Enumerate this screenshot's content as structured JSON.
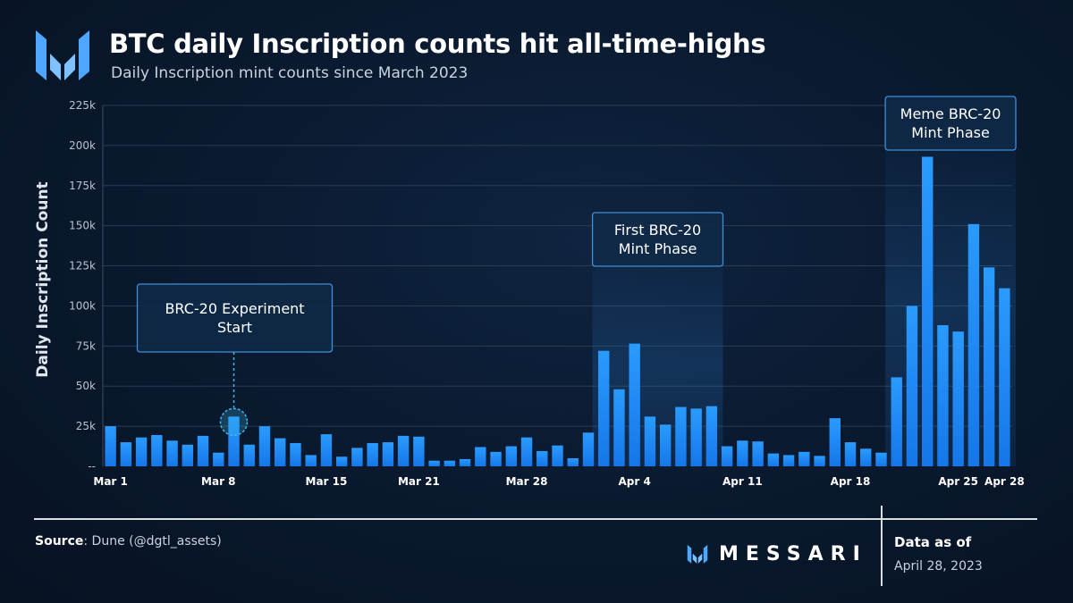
{
  "header": {
    "title": "BTC daily Inscription counts hit all-time-highs",
    "subtitle": "Daily Inscription mint counts since March 2023"
  },
  "footer": {
    "source_label": "Source",
    "source_text": ": Dune (@dgtl_assets)",
    "brand_name": "MESSARI",
    "as_of_label": "Data as of",
    "as_of_date": "April 28, 2023"
  },
  "colors": {
    "bar": "#1f8fff",
    "highlight_band": "#2a7fd6",
    "grid": "#2a3b52",
    "annotation_border": "#3f8fd8",
    "logo": "#4ea6ff"
  },
  "chart_data": {
    "type": "bar",
    "ylabel": "Daily Inscription Count",
    "ylim": [
      0,
      225000
    ],
    "y_ticks": [
      0,
      25000,
      50000,
      75000,
      100000,
      125000,
      150000,
      175000,
      200000,
      225000
    ],
    "y_tick_labels": [
      "--",
      "25k",
      "50k",
      "75k",
      "100k",
      "125k",
      "150k",
      "175k",
      "200k",
      "225k"
    ],
    "x_ticks": [
      {
        "label": "Mar 1",
        "date": "2023-03-01"
      },
      {
        "label": "Mar 8",
        "date": "2023-03-08"
      },
      {
        "label": "Mar 15",
        "date": "2023-03-15"
      },
      {
        "label": "Mar 21",
        "date": "2023-03-21"
      },
      {
        "label": "Mar 28",
        "date": "2023-03-28"
      },
      {
        "label": "Apr 4",
        "date": "2023-04-04"
      },
      {
        "label": "Apr 11",
        "date": "2023-04-11"
      },
      {
        "label": "Apr 18",
        "date": "2023-04-18"
      },
      {
        "label": "Apr 25",
        "date": "2023-04-25"
      },
      {
        "label": "Apr 28",
        "date": "2023-04-28"
      }
    ],
    "grid": true,
    "legend": "none",
    "series": [
      {
        "points": [
          [
            "2023-03-01",
            25000
          ],
          [
            "2023-03-02",
            15000
          ],
          [
            "2023-03-03",
            18000
          ],
          [
            "2023-03-04",
            19500
          ],
          [
            "2023-03-05",
            16000
          ],
          [
            "2023-03-06",
            13500
          ],
          [
            "2023-03-07",
            19000
          ],
          [
            "2023-03-08",
            8500
          ],
          [
            "2023-03-09",
            31000
          ],
          [
            "2023-03-10",
            13500
          ],
          [
            "2023-03-11",
            25000
          ],
          [
            "2023-03-12",
            17500
          ],
          [
            "2023-03-13",
            14500
          ],
          [
            "2023-03-14",
            7000
          ],
          [
            "2023-03-15",
            20000
          ],
          [
            "2023-03-16",
            6000
          ],
          [
            "2023-03-17",
            11500
          ],
          [
            "2023-03-18",
            14500
          ],
          [
            "2023-03-19",
            15000
          ],
          [
            "2023-03-20",
            19000
          ],
          [
            "2023-03-21",
            18500
          ],
          [
            "2023-03-22",
            3500
          ],
          [
            "2023-03-23",
            3500
          ],
          [
            "2023-03-24",
            4500
          ],
          [
            "2023-03-25",
            12000
          ],
          [
            "2023-03-26",
            9000
          ],
          [
            "2023-03-27",
            12500
          ],
          [
            "2023-03-28",
            18000
          ],
          [
            "2023-03-29",
            9500
          ],
          [
            "2023-03-30",
            13000
          ],
          [
            "2023-03-31",
            5000
          ],
          [
            "2023-04-01",
            21000
          ],
          [
            "2023-04-02",
            72000
          ],
          [
            "2023-04-03",
            48000
          ],
          [
            "2023-04-04",
            76500
          ],
          [
            "2023-04-05",
            31000
          ],
          [
            "2023-04-06",
            26000
          ],
          [
            "2023-04-07",
            37000
          ],
          [
            "2023-04-08",
            36000
          ],
          [
            "2023-04-09",
            37500
          ],
          [
            "2023-04-10",
            12500
          ],
          [
            "2023-04-11",
            16000
          ],
          [
            "2023-04-12",
            15500
          ],
          [
            "2023-04-13",
            8000
          ],
          [
            "2023-04-14",
            7000
          ],
          [
            "2023-04-15",
            9000
          ],
          [
            "2023-04-16",
            6500
          ],
          [
            "2023-04-17",
            30000
          ],
          [
            "2023-04-18",
            15000
          ],
          [
            "2023-04-19",
            11000
          ],
          [
            "2023-04-20",
            8500
          ],
          [
            "2023-04-21",
            55500
          ],
          [
            "2023-04-22",
            100000
          ],
          [
            "2023-04-23",
            193000
          ],
          [
            "2023-04-24",
            88000
          ],
          [
            "2023-04-25",
            84000
          ],
          [
            "2023-04-26",
            151000
          ],
          [
            "2023-04-27",
            124000
          ],
          [
            "2023-04-28",
            111000
          ]
        ]
      }
    ],
    "highlight_bands": [
      {
        "start": "2023-04-02",
        "end": "2023-04-09"
      },
      {
        "start": "2023-04-21",
        "end": "2023-04-28"
      }
    ],
    "annotations": [
      {
        "lines": [
          "BRC-20 Experiment",
          "Start"
        ],
        "date": "2023-03-09",
        "marker": "circle"
      },
      {
        "lines": [
          "First BRC-20",
          "Mint Phase"
        ],
        "date": "2023-04-05",
        "band": 0
      },
      {
        "lines": [
          "Meme BRC-20",
          "Mint Phase"
        ],
        "date": "2023-04-24",
        "band": 1
      }
    ]
  }
}
